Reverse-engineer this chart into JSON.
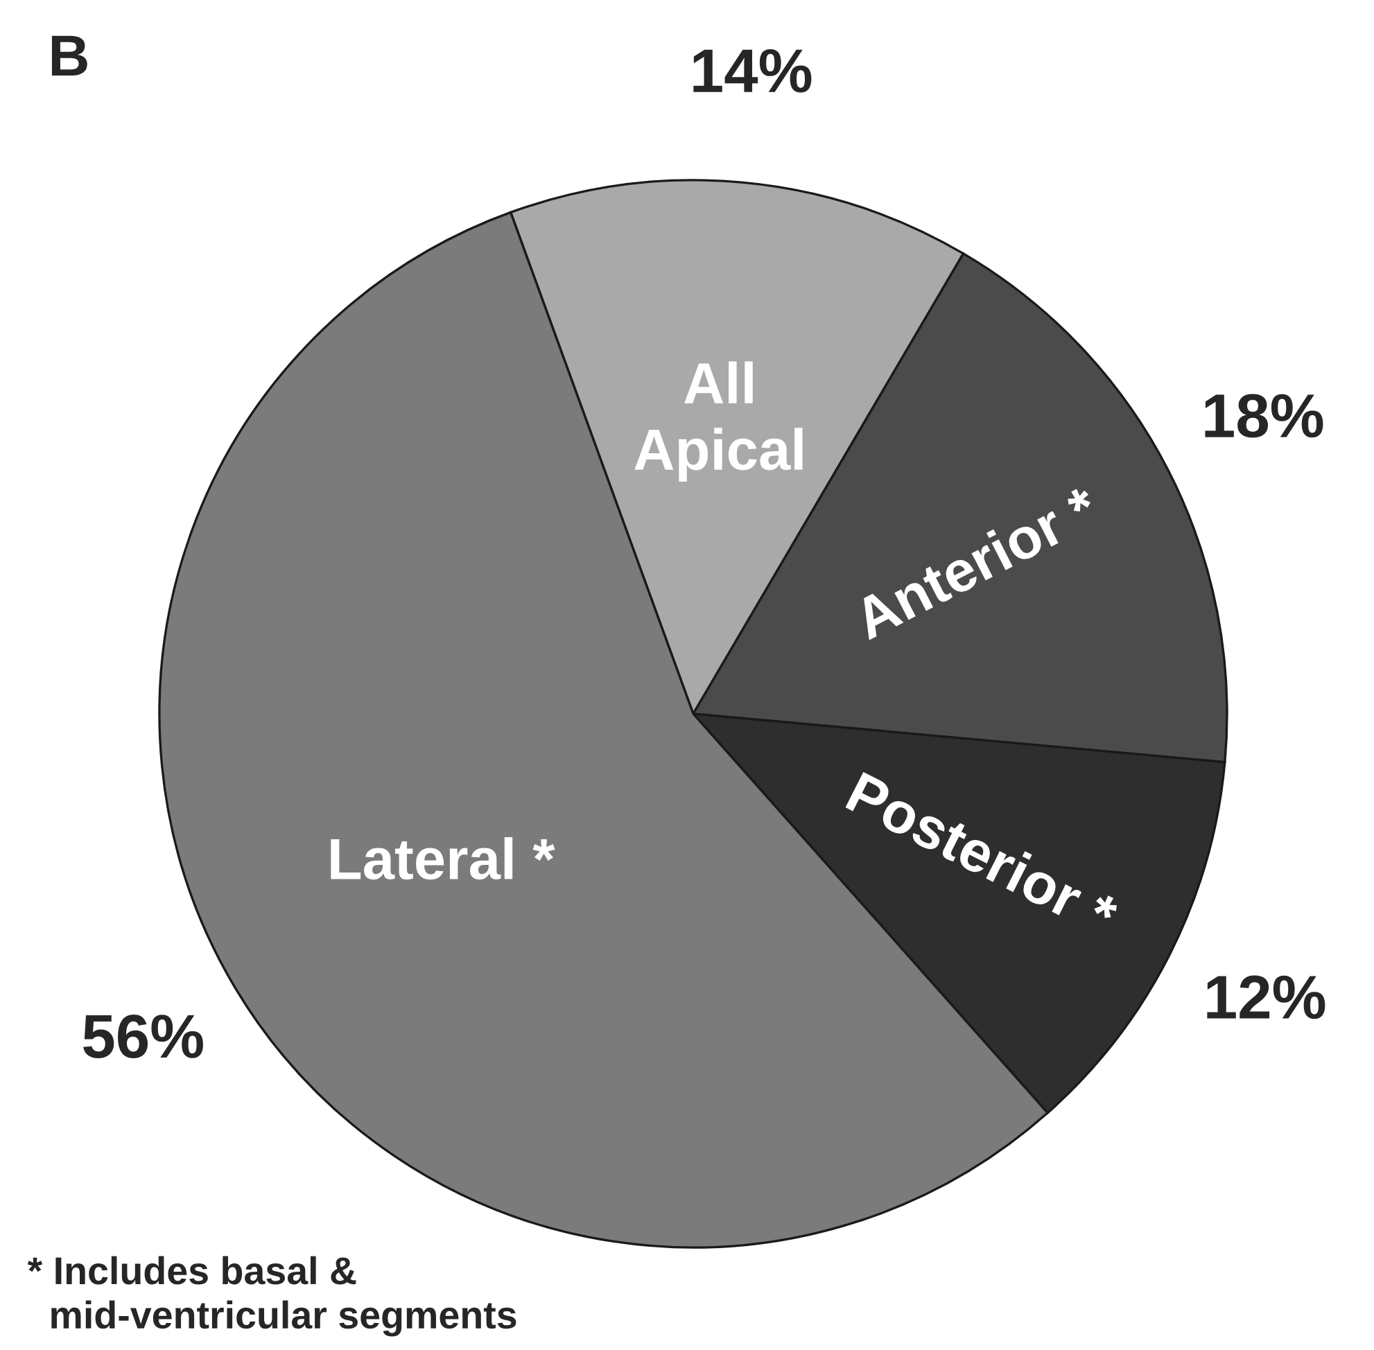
{
  "chart_data": {
    "type": "pie",
    "title": "B",
    "categories": [
      "All\nApical",
      "Anterior *",
      "Posterior *",
      "Lateral *"
    ],
    "values": [
      14,
      18,
      12,
      56
    ],
    "colors": [
      "#a9a9a9",
      "#4b4b4b",
      "#2e2e2e",
      "#7b7b7b"
    ],
    "value_labels": [
      "14%",
      "18%",
      "12%",
      "56%"
    ],
    "annotations": [
      "* Includes basal &\n  mid-ventricular segments"
    ]
  }
}
